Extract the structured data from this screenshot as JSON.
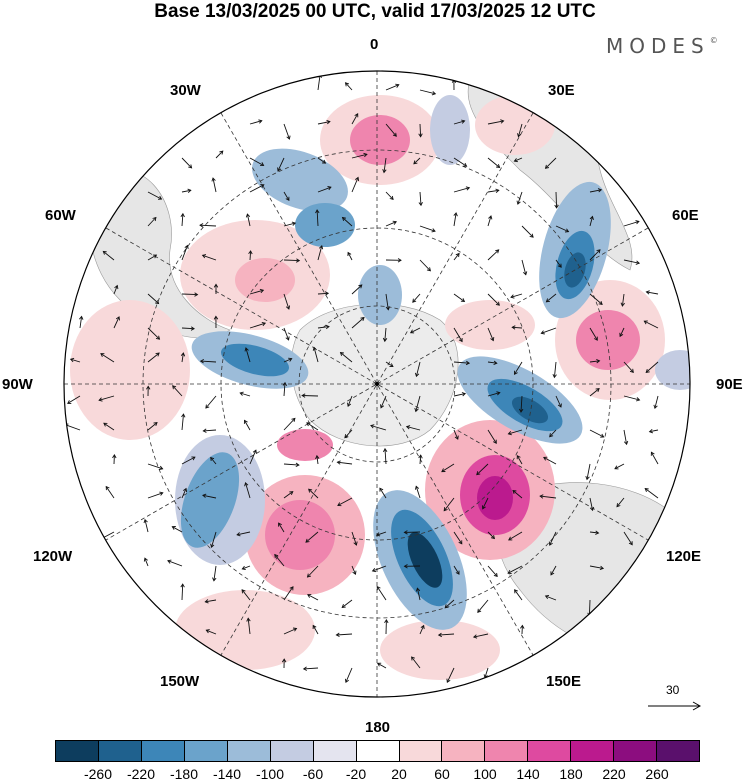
{
  "title": "Base 13/03/2025 00 UTC, valid 17/03/2025 12 UTC",
  "logo": "MODES",
  "logo_mark": "©",
  "longitude_labels": {
    "lon_0": "0",
    "lon_30e": "30E",
    "lon_60e": "60E",
    "lon_90e": "90E",
    "lon_120e": "120E",
    "lon_150e": "150E",
    "lon_180": "180",
    "lon_150w": "150W",
    "lon_120w": "120W",
    "lon_90w": "90W",
    "lon_60w": "60W",
    "lon_30w": "30W"
  },
  "vector_scale": "30",
  "legend": {
    "tick_labels": [
      "-260",
      "-220",
      "-180",
      "-140",
      "-100",
      "-60",
      "-20",
      "20",
      "60",
      "100",
      "140",
      "180",
      "220",
      "260"
    ],
    "colors": [
      "#0d3d5e",
      "#1f618e",
      "#3d86b8",
      "#6ba3cb",
      "#9cbcd9",
      "#c4cce2",
      "#e4e4ef",
      "#ffffff",
      "#f8d9da",
      "#f6b3c0",
      "#ef85ae",
      "#de4aa0",
      "#bb1a8e",
      "#8c0d7f",
      "#5a106c"
    ]
  }
}
